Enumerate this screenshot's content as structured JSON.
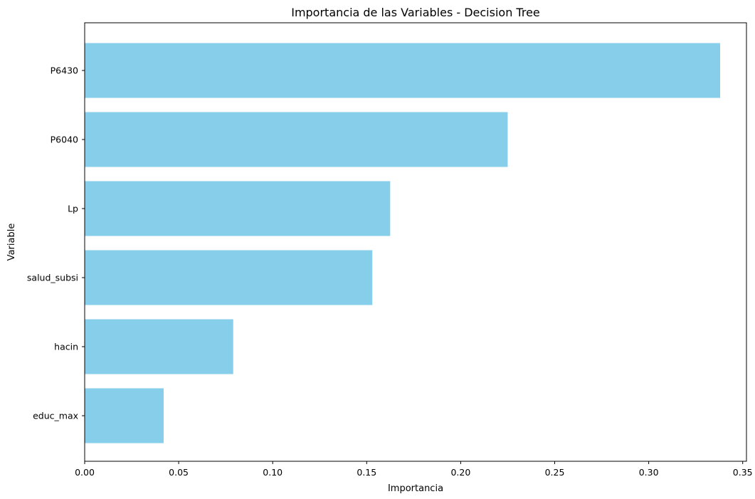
{
  "chart_data": {
    "type": "bar",
    "orientation": "horizontal",
    "title": "Importancia de las Variables - Decision Tree",
    "xlabel": "Importancia",
    "ylabel": "Variable",
    "categories": [
      "P6430",
      "P6040",
      "Lp",
      "salud_subsi",
      "hacin",
      "educ_max"
    ],
    "values": [
      0.338,
      0.225,
      0.1625,
      0.153,
      0.079,
      0.042
    ],
    "xlim": [
      0,
      0.352
    ],
    "xticks": [
      0.0,
      0.05,
      0.1,
      0.15,
      0.2,
      0.25,
      0.3,
      0.35
    ],
    "xtick_labels": [
      "0.00",
      "0.05",
      "0.10",
      "0.15",
      "0.20",
      "0.25",
      "0.30",
      "0.35"
    ],
    "bar_color": "#87CEEB",
    "grid": false,
    "legend": "none"
  }
}
